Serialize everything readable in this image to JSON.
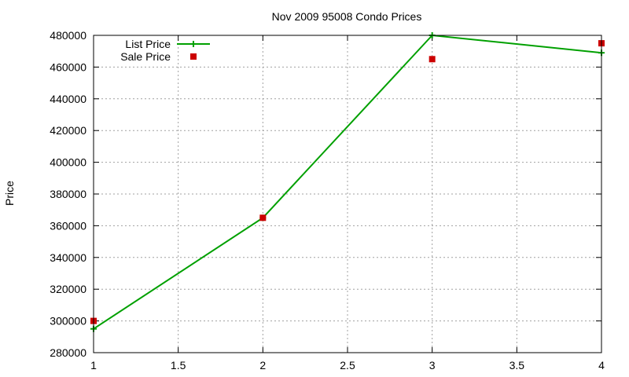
{
  "chart_data": {
    "type": "line",
    "title": "Nov 2009 95008 Condo Prices",
    "xlabel": "",
    "ylabel": "Price",
    "xlim": [
      1,
      4
    ],
    "ylim": [
      280000,
      480000
    ],
    "x_ticks": [
      1,
      1.5,
      2,
      2.5,
      3,
      3.5,
      4
    ],
    "x_tick_labels": [
      "1",
      "1.5",
      "2",
      "2.5",
      "3",
      "3.5",
      "4"
    ],
    "y_ticks": [
      280000,
      300000,
      320000,
      340000,
      360000,
      380000,
      400000,
      420000,
      440000,
      460000,
      480000
    ],
    "y_tick_labels": [
      "280000",
      "300000",
      "320000",
      "340000",
      "360000",
      "380000",
      "400000",
      "420000",
      "440000",
      "460000",
      "480000"
    ],
    "grid": true,
    "legend_position": "top-left",
    "series": [
      {
        "name": "List Price",
        "style": "line+cross",
        "color": "#00a000",
        "x": [
          1,
          2,
          3,
          4
        ],
        "y": [
          295000,
          365000,
          480000,
          469000
        ]
      },
      {
        "name": "Sale Price",
        "style": "square-points",
        "color": "#cc0000",
        "x": [
          1,
          2,
          3,
          4
        ],
        "y": [
          300000,
          365000,
          465000,
          475000
        ]
      }
    ]
  }
}
